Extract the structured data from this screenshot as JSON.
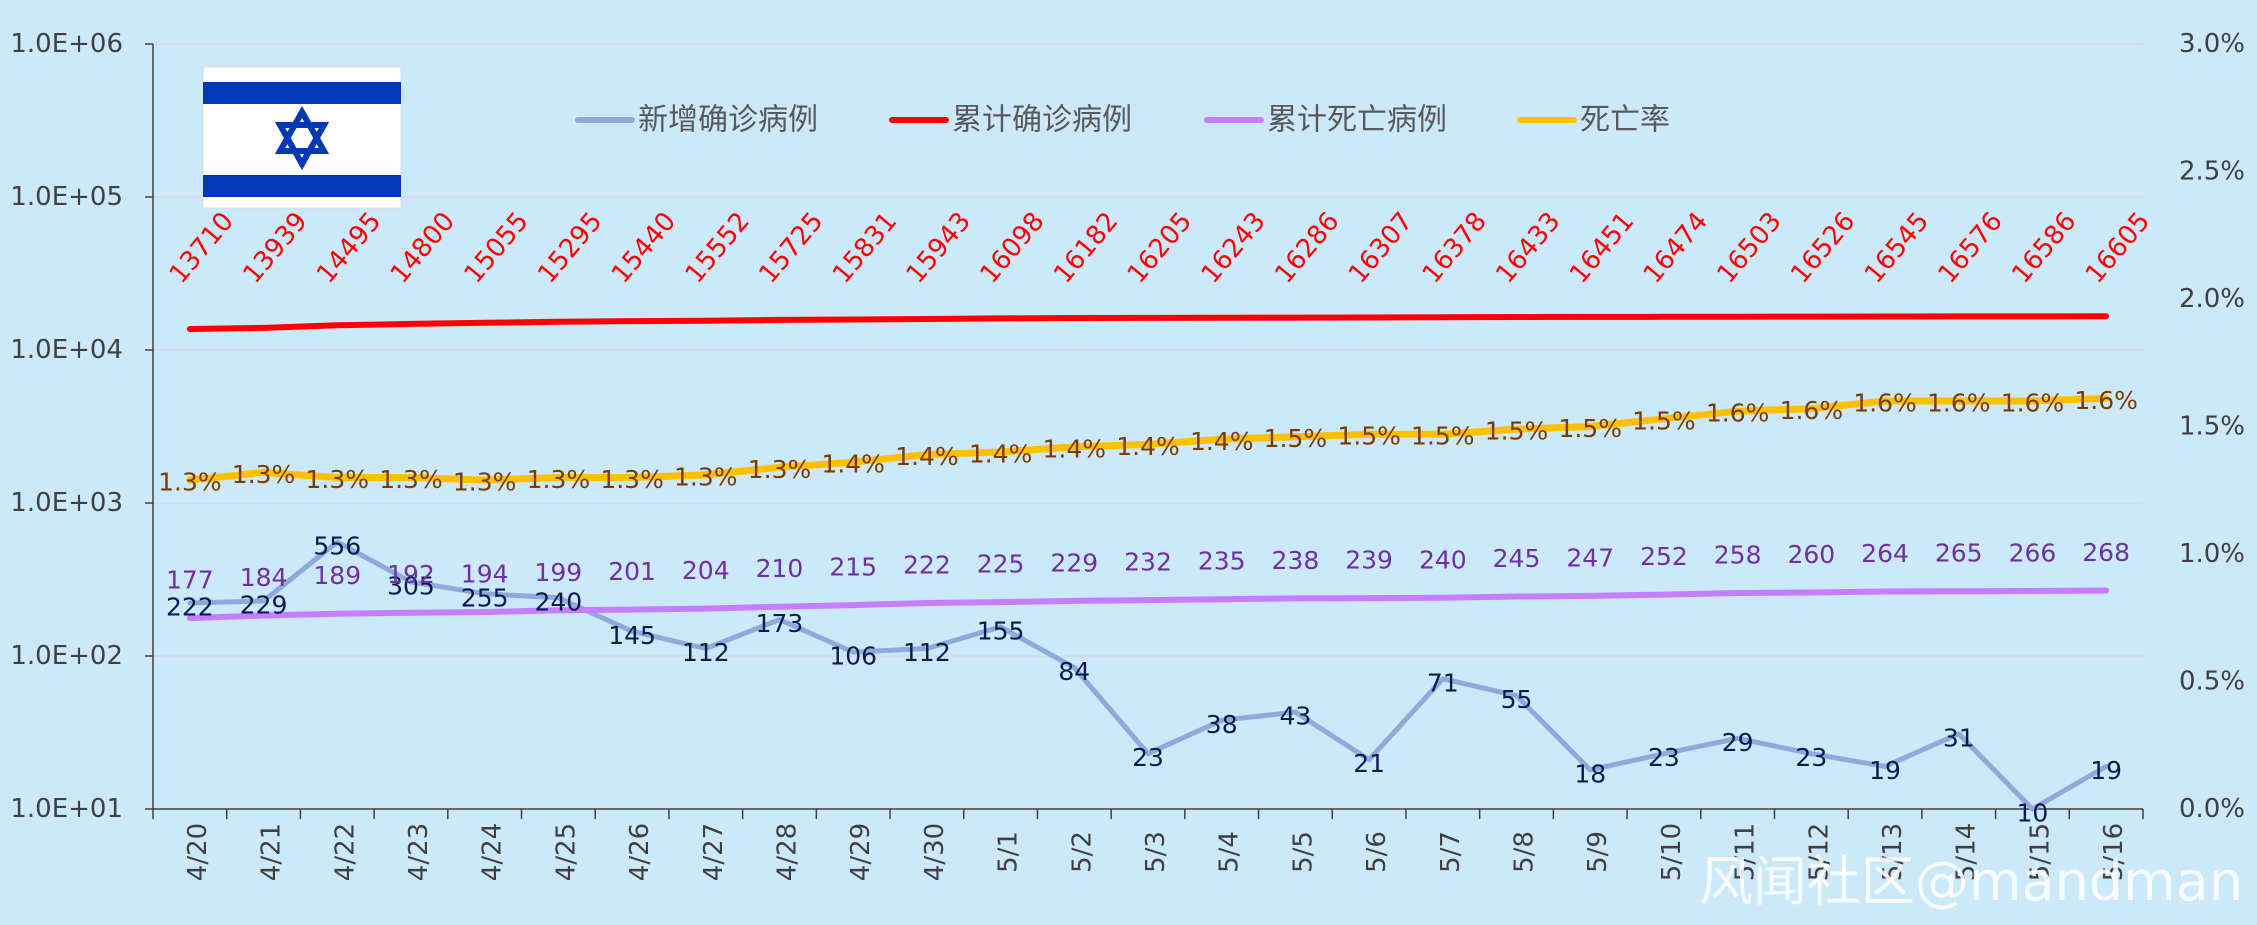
{
  "chart_data": {
    "type": "line",
    "categories": [
      "4/20",
      "4/21",
      "4/22",
      "4/23",
      "4/24",
      "4/25",
      "4/26",
      "4/27",
      "4/28",
      "4/29",
      "4/30",
      "5/1",
      "5/2",
      "5/3",
      "5/4",
      "5/5",
      "5/6",
      "5/7",
      "5/8",
      "5/9",
      "5/10",
      "5/11",
      "5/12",
      "5/13",
      "5/14",
      "5/15",
      "5/16"
    ],
    "y_left": {
      "scale": "log",
      "range": [
        10,
        1000000
      ],
      "ticks": [
        "1.0E+01",
        "1.0E+02",
        "1.0E+03",
        "1.0E+04",
        "1.0E+05",
        "1.0E+06"
      ],
      "tick_values": [
        10,
        100,
        1000,
        10000,
        100000,
        1000000
      ]
    },
    "y_right": {
      "scale": "linear",
      "range": [
        0,
        3
      ],
      "unit": "%",
      "ticks": [
        "0.0%",
        "0.5%",
        "1.0%",
        "1.5%",
        "2.0%",
        "2.5%",
        "3.0%"
      ],
      "tick_values": [
        0,
        0.5,
        1,
        1.5,
        2,
        2.5,
        3
      ]
    },
    "grid": true,
    "legend_position": "top",
    "series": [
      {
        "name": "新增确诊病例",
        "axis": "left",
        "color": "#8eaadb",
        "values": [
          222,
          229,
          556,
          305,
          255,
          240,
          145,
          112,
          173,
          106,
          112,
          155,
          84,
          23,
          38,
          43,
          21,
          71,
          55,
          18,
          23,
          29,
          23,
          19,
          31,
          10,
          19
        ]
      },
      {
        "name": "累计确诊病例",
        "axis": "left",
        "color": "#ff0000",
        "values": [
          13710,
          13939,
          14495,
          14800,
          15055,
          15295,
          15440,
          15552,
          15725,
          15831,
          15943,
          16098,
          16182,
          16205,
          16243,
          16286,
          16307,
          16378,
          16433,
          16451,
          16474,
          16503,
          16526,
          16545,
          16576,
          16586,
          16605
        ]
      },
      {
        "name": "累计死亡病例",
        "axis": "left",
        "color": "#c77dff",
        "values": [
          177,
          184,
          189,
          192,
          194,
          199,
          201,
          204,
          210,
          215,
          222,
          225,
          229,
          232,
          235,
          238,
          239,
          240,
          245,
          247,
          252,
          258,
          260,
          264,
          265,
          266,
          268
        ]
      },
      {
        "name": "死亡率",
        "axis": "right",
        "color": "#ffc000",
        "values": [
          1.3,
          1.3,
          1.3,
          1.3,
          1.3,
          1.3,
          1.3,
          1.3,
          1.3,
          1.4,
          1.4,
          1.4,
          1.4,
          1.4,
          1.4,
          1.5,
          1.5,
          1.5,
          1.5,
          1.5,
          1.5,
          1.6,
          1.6,
          1.6,
          1.6,
          1.6,
          1.6
        ],
        "values_precise": [
          1.29,
          1.32,
          1.3,
          1.3,
          1.29,
          1.3,
          1.3,
          1.31,
          1.34,
          1.36,
          1.39,
          1.4,
          1.42,
          1.43,
          1.45,
          1.46,
          1.47,
          1.47,
          1.49,
          1.5,
          1.53,
          1.56,
          1.57,
          1.6,
          1.6,
          1.6,
          1.61
        ],
        "labels": [
          "1.3%",
          "1.3%",
          "1.3%",
          "1.3%",
          "1.3%",
          "1.3%",
          "1.3%",
          "1.3%",
          "1.3%",
          "1.4%",
          "1.4%",
          "1.4%",
          "1.4%",
          "1.4%",
          "1.4%",
          "1.5%",
          "1.5%",
          "1.5%",
          "1.5%",
          "1.5%",
          "1.5%",
          "1.6%",
          "1.6%",
          "1.6%",
          "1.6%",
          "1.6%",
          "1.6%"
        ]
      }
    ]
  },
  "flag": {
    "name": "israel-flag",
    "stripe_color": "#0038b8",
    "field_color": "#ffffff"
  },
  "watermark": "风闻社区@mandman"
}
